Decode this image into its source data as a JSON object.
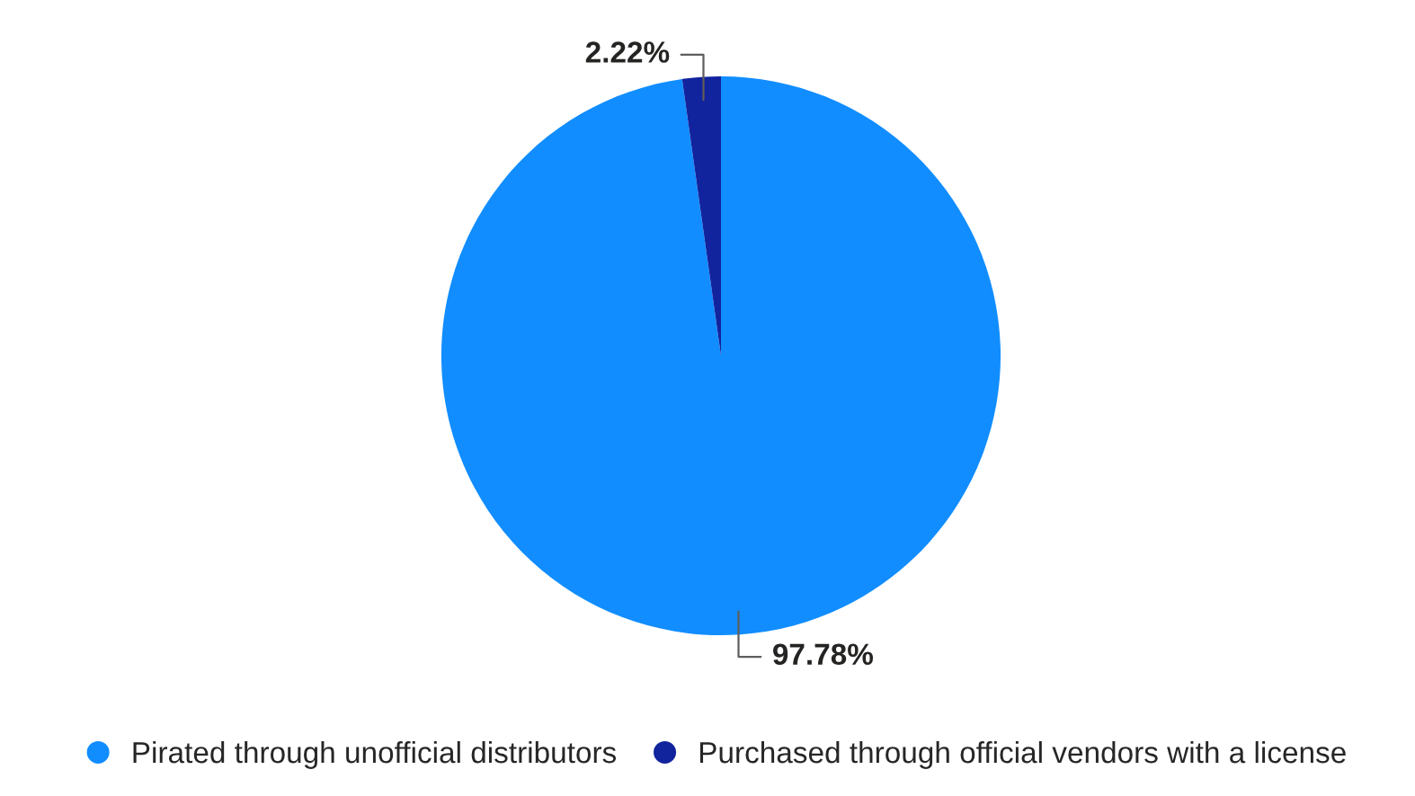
{
  "chart_data": {
    "type": "pie",
    "categories": [
      "Pirated through unofficial distributors",
      "Purchased through official vendors with a license"
    ],
    "values": [
      97.78,
      2.22
    ],
    "colors": [
      "#118dff",
      "#12239e"
    ],
    "value_labels": [
      "97.78%",
      "2.22%"
    ],
    "legend": "bottom"
  }
}
